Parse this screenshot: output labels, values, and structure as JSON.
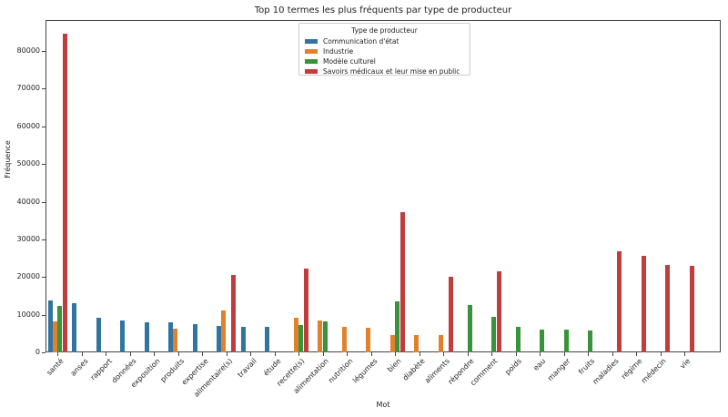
{
  "chart_data": {
    "type": "bar",
    "title": "Top 10 termes les plus fréquents par type de producteur",
    "xlabel": "Mot",
    "ylabel": "Fréquence",
    "ylim": [
      0,
      88000
    ],
    "yticks": [
      0,
      10000,
      20000,
      30000,
      40000,
      50000,
      60000,
      70000,
      80000
    ],
    "grid": false,
    "legend": {
      "title": "Type de producteur",
      "position": "upper center"
    },
    "categories": [
      "santé",
      "anses",
      "rapport",
      "données",
      "exposition",
      "produits",
      "expertise",
      "alimentaire(s)",
      "travail",
      "étude",
      "recette(s)",
      "alimentation",
      "nutrition",
      "légumes",
      "bien",
      "diabète",
      "aliments",
      "répondre",
      "comment",
      "poids",
      "eau",
      "manger",
      "fruits",
      "maladies",
      "régime",
      "médecin",
      "vie"
    ],
    "series": [
      {
        "name": "Communication d'état",
        "color": "#3274a1",
        "values": [
          13800,
          13000,
          9100,
          8400,
          8000,
          7900,
          7400,
          6900,
          6850,
          6750,
          null,
          null,
          null,
          null,
          null,
          null,
          null,
          null,
          null,
          null,
          null,
          null,
          null,
          null,
          null,
          null,
          null
        ]
      },
      {
        "name": "Industrie",
        "color": "#e1812c",
        "values": [
          8150,
          null,
          null,
          null,
          null,
          6200,
          null,
          11200,
          null,
          null,
          9100,
          8450,
          6850,
          6600,
          4700,
          4700,
          4700,
          null,
          null,
          null,
          null,
          null,
          null,
          null,
          null,
          null,
          null
        ]
      },
      {
        "name": "Modèle culturel",
        "color": "#3a923a",
        "values": [
          12400,
          null,
          null,
          null,
          null,
          null,
          null,
          null,
          null,
          null,
          7250,
          8300,
          null,
          null,
          13500,
          null,
          null,
          12650,
          9500,
          6700,
          6100,
          5950,
          5700,
          null,
          null,
          null,
          null
        ]
      },
      {
        "name": "Savoirs médicaux et leur mise en public",
        "color": "#c03d3e",
        "values": [
          84500,
          null,
          null,
          null,
          null,
          null,
          null,
          20600,
          null,
          null,
          22200,
          null,
          null,
          null,
          37150,
          null,
          20100,
          null,
          21600,
          null,
          null,
          null,
          null,
          26900,
          25500,
          23100,
          23000
        ]
      }
    ]
  }
}
